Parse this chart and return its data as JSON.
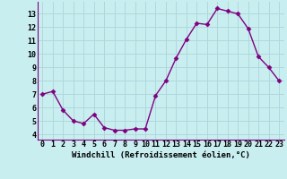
{
  "x": [
    0,
    1,
    2,
    3,
    4,
    5,
    6,
    7,
    8,
    9,
    10,
    11,
    12,
    13,
    14,
    15,
    16,
    17,
    18,
    19,
    20,
    21,
    22,
    23
  ],
  "y": [
    7.0,
    7.2,
    5.8,
    5.0,
    4.8,
    5.5,
    4.5,
    4.3,
    4.3,
    4.4,
    4.4,
    6.9,
    8.0,
    9.7,
    11.1,
    12.3,
    12.2,
    13.4,
    13.2,
    13.0,
    11.9,
    9.8,
    9.0,
    8.0
  ],
  "line_color": "#800080",
  "marker": "D",
  "marker_size": 2.5,
  "line_width": 1.0,
  "background_color": "#c8eef0",
  "grid_color": "#b0d8dc",
  "xlabel": "Windchill (Refroidissement éolien,°C)",
  "xlabel_fontsize": 6.5,
  "tick_fontsize": 6,
  "yticks": [
    4,
    5,
    6,
    7,
    8,
    9,
    10,
    11,
    12,
    13
  ],
  "ylim": [
    3.6,
    13.9
  ],
  "xlim": [
    -0.5,
    23.5
  ]
}
